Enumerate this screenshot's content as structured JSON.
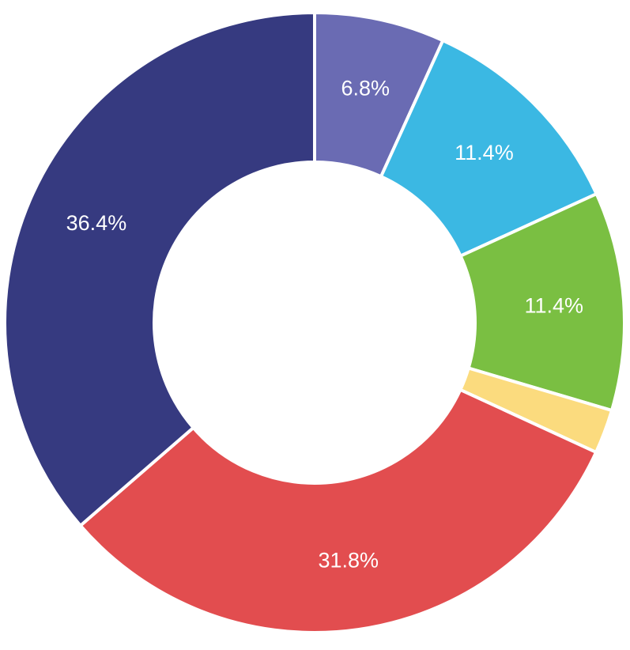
{
  "chart_data": {
    "type": "pie",
    "variant": "donut",
    "start_angle_deg": 0,
    "direction": "clockwise",
    "slices": [
      {
        "value": 6.8,
        "label": "6.8%",
        "color": "#6a6bb3"
      },
      {
        "value": 11.4,
        "label": "11.4%",
        "color": "#3bb8e3"
      },
      {
        "value": 11.4,
        "label": "11.4%",
        "color": "#7abf42"
      },
      {
        "value": 2.3,
        "label": "",
        "color": "#fbdb7e"
      },
      {
        "value": 31.8,
        "label": "31.8%",
        "color": "#e24d4f"
      },
      {
        "value": 36.4,
        "label": "36.4%",
        "color": "#363a80"
      }
    ],
    "legend": "none"
  }
}
